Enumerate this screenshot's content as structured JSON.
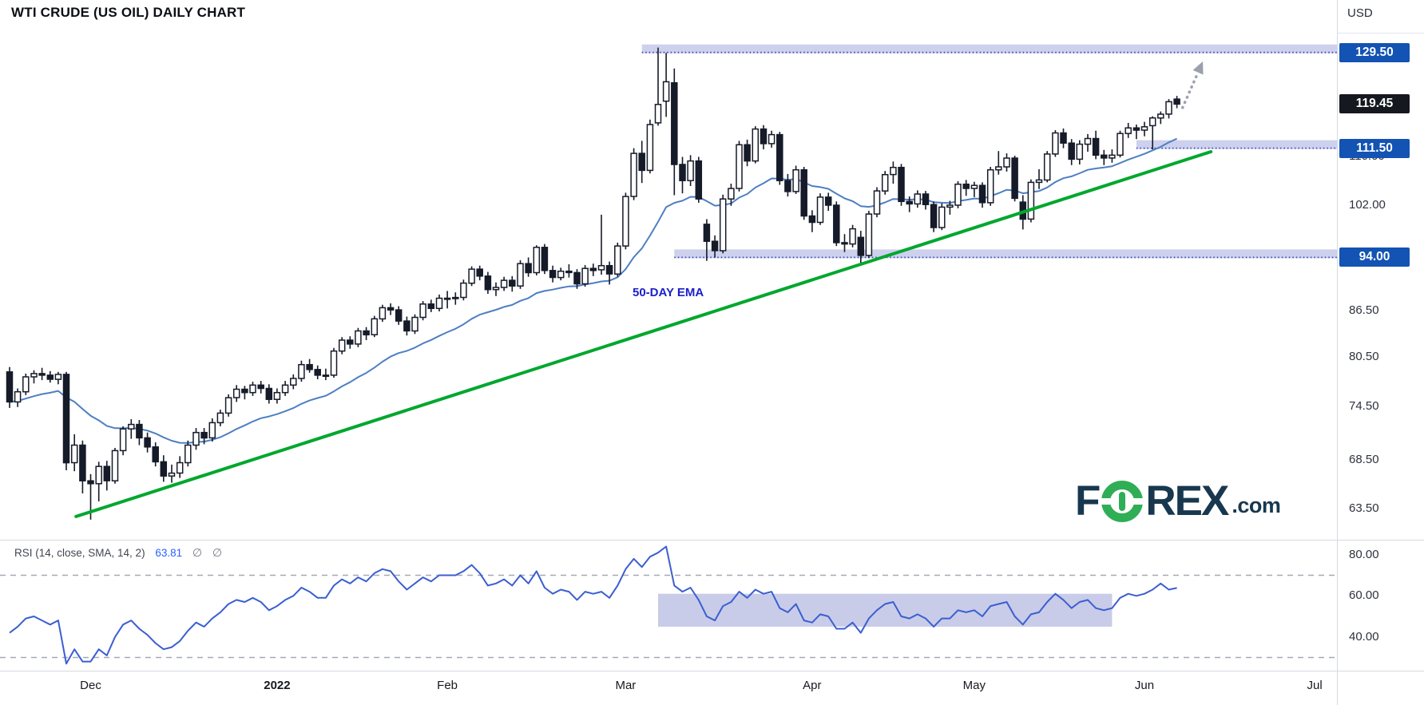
{
  "title": "WTI CRUDE (US OIL) DAILY CHART",
  "currency_label": "USD",
  "watermark": {
    "brand_left": "F",
    "brand_right": "REX",
    "tld": ".com"
  },
  "rsi_legend": {
    "name": "RSI (14, close, SMA, 14, 2)",
    "value": "63.81",
    "icon_1": "∅",
    "icon_2": "∅"
  },
  "annotations": {
    "ema_label": "50-DAY EMA",
    "levels": [
      {
        "label": "129.50",
        "price": 129.5,
        "start_index": 78
      },
      {
        "label": "94.00",
        "price": 94.0,
        "start_index": 82
      },
      {
        "label": "111.50",
        "price": 111.5,
        "start_index": 139
      }
    ],
    "trendline": {
      "from_index": 8.2,
      "from_price": 62.7,
      "to_index": 148.2,
      "to_price": 110.9
    },
    "arrow": {
      "from_index": 144.7,
      "from_price": 118.8,
      "to_index": 147.2,
      "to_price": 127.7
    }
  },
  "colors": {
    "candle_up_fill": "#ffffff",
    "candle_down_fill": "#161b29",
    "candle_stroke": "#161b29",
    "ema_line": "#4e7fc2",
    "trendline": "#00a72e",
    "band_fill": "rgba(144,153,215,0.45)",
    "band_line": "#3a46b4",
    "rsi_line": "#3c5ed1",
    "rsi_box_fill": "rgba(124,134,201,0.42)",
    "dashed_level": "#a6a9b3",
    "arrow": "#9ba0ab",
    "badge_blue": "#1253b4",
    "badge_black": "#15181e"
  },
  "chart_data": [
    {
      "type": "candlestick",
      "name": "WTI Crude (US Oil), daily",
      "y_scale": "log",
      "visible_price_range": [
        60.3,
        140.5
      ],
      "ohlc_format": [
        "open",
        "high",
        "low",
        "close"
      ],
      "last_price": 119.45,
      "y_ticks": [
        {
          "label": "110.00",
          "value": 110.0
        },
        {
          "label": "102.00",
          "value": 102.0
        },
        {
          "label": "86.50",
          "value": 86.5
        },
        {
          "label": "80.50",
          "value": 80.5
        },
        {
          "label": "74.50",
          "value": 74.5
        },
        {
          "label": "68.50",
          "value": 68.5
        },
        {
          "label": "63.50",
          "value": 63.5
        }
      ],
      "y_badges": [
        {
          "label": "129.50",
          "value": 129.5,
          "style": "blue"
        },
        {
          "label": "119.45",
          "value": 119.45,
          "style": "black"
        },
        {
          "label": "111.50",
          "value": 111.5,
          "style": "blue"
        },
        {
          "label": "94.00",
          "value": 94.0,
          "style": "blue"
        }
      ],
      "x_ticks": [
        {
          "label": "Dec",
          "index": 10
        },
        {
          "label": "2022",
          "index": 33,
          "year": true
        },
        {
          "label": "Feb",
          "index": 54
        },
        {
          "label": "Mar",
          "index": 76
        },
        {
          "label": "Apr",
          "index": 99
        },
        {
          "label": "May",
          "index": 119
        },
        {
          "label": "Jun",
          "index": 140
        },
        {
          "label": "Jul",
          "index": 161
        }
      ],
      "candles": [
        [
          78.6,
          79.2,
          74.3,
          75.0
        ],
        [
          75.0,
          76.6,
          74.4,
          76.2
        ],
        [
          76.2,
          78.4,
          75.8,
          78.0
        ],
        [
          78.0,
          78.8,
          77.2,
          78.4
        ],
        [
          78.4,
          79.1,
          77.6,
          78.2
        ],
        [
          78.2,
          78.7,
          77.3,
          77.7
        ],
        [
          77.7,
          78.6,
          77.1,
          78.3
        ],
        [
          78.3,
          78.6,
          67.4,
          68.2
        ],
        [
          68.2,
          71.3,
          67.3,
          70.1
        ],
        [
          70.1,
          70.6,
          65.0,
          66.3
        ],
        [
          66.3,
          67.0,
          62.4,
          66.0
        ],
        [
          66.0,
          68.3,
          64.2,
          67.8
        ],
        [
          67.8,
          68.4,
          65.3,
          66.3
        ],
        [
          66.3,
          69.8,
          66.0,
          69.5
        ],
        [
          69.5,
          72.2,
          69.0,
          71.9
        ],
        [
          71.9,
          73.0,
          70.8,
          72.4
        ],
        [
          72.4,
          72.9,
          70.1,
          70.9
        ],
        [
          70.9,
          71.5,
          69.3,
          69.9
        ],
        [
          69.9,
          70.4,
          67.8,
          68.3
        ],
        [
          68.3,
          69.0,
          66.2,
          66.8
        ],
        [
          66.8,
          68.0,
          66.1,
          67.1
        ],
        [
          67.1,
          68.9,
          66.6,
          68.2
        ],
        [
          68.2,
          70.6,
          67.8,
          70.1
        ],
        [
          70.1,
          72.0,
          69.6,
          71.5
        ],
        [
          71.5,
          72.0,
          70.2,
          70.9
        ],
        [
          70.9,
          73.1,
          70.5,
          72.6
        ],
        [
          72.6,
          74.1,
          72.2,
          73.7
        ],
        [
          73.7,
          75.9,
          73.3,
          75.5
        ],
        [
          75.5,
          77.0,
          75.0,
          76.5
        ],
        [
          76.5,
          76.9,
          75.3,
          76.1
        ],
        [
          76.1,
          77.4,
          75.7,
          77.0
        ],
        [
          77.0,
          77.5,
          76.0,
          76.6
        ],
        [
          76.6,
          77.1,
          74.8,
          75.3
        ],
        [
          75.3,
          76.6,
          74.8,
          76.1
        ],
        [
          76.1,
          77.5,
          75.7,
          77.0
        ],
        [
          77.0,
          78.3,
          76.5,
          77.8
        ],
        [
          77.8,
          80.0,
          77.4,
          79.5
        ],
        [
          79.5,
          80.2,
          78.5,
          78.9
        ],
        [
          78.9,
          79.4,
          77.7,
          78.2
        ],
        [
          78.2,
          79.0,
          77.6,
          78.2
        ],
        [
          78.2,
          81.6,
          77.9,
          81.2
        ],
        [
          81.2,
          83.0,
          80.8,
          82.6
        ],
        [
          82.6,
          83.1,
          81.5,
          82.1
        ],
        [
          82.1,
          84.2,
          81.7,
          83.8
        ],
        [
          83.8,
          84.3,
          82.6,
          83.3
        ],
        [
          83.3,
          85.8,
          83.0,
          85.4
        ],
        [
          85.4,
          87.3,
          85.0,
          86.9
        ],
        [
          86.9,
          87.5,
          85.9,
          86.6
        ],
        [
          86.6,
          87.1,
          84.6,
          85.1
        ],
        [
          85.1,
          85.7,
          83.2,
          83.8
        ],
        [
          83.8,
          86.0,
          83.4,
          85.6
        ],
        [
          85.6,
          87.8,
          85.2,
          87.4
        ],
        [
          87.4,
          88.0,
          86.3,
          86.8
        ],
        [
          86.8,
          88.7,
          86.4,
          88.2
        ],
        [
          88.2,
          89.2,
          86.8,
          88.2
        ],
        [
          88.2,
          89.0,
          87.3,
          88.3
        ],
        [
          88.3,
          90.8,
          87.9,
          90.3
        ],
        [
          90.3,
          92.7,
          89.9,
          92.3
        ],
        [
          92.3,
          92.8,
          90.7,
          91.3
        ],
        [
          91.3,
          91.9,
          88.8,
          89.4
        ],
        [
          89.4,
          90.4,
          88.5,
          89.7
        ],
        [
          89.7,
          91.2,
          89.2,
          90.7
        ],
        [
          90.7,
          91.3,
          89.1,
          89.9
        ],
        [
          89.9,
          93.6,
          89.5,
          93.1
        ],
        [
          93.1,
          94.0,
          91.2,
          91.8
        ],
        [
          91.8,
          95.8,
          91.4,
          95.5
        ],
        [
          95.5,
          96.0,
          91.6,
          92.1
        ],
        [
          92.1,
          92.8,
          90.4,
          91.1
        ],
        [
          91.1,
          92.5,
          90.7,
          92.0
        ],
        [
          92.0,
          93.0,
          91.1,
          91.8
        ],
        [
          91.8,
          92.3,
          89.5,
          90.2
        ],
        [
          90.2,
          92.9,
          89.8,
          92.4
        ],
        [
          92.4,
          93.1,
          91.3,
          92.1
        ],
        [
          92.2,
          100.5,
          91.5,
          92.8
        ],
        [
          92.8,
          93.4,
          90.1,
          91.6
        ],
        [
          91.6,
          96.2,
          91.2,
          95.7
        ],
        [
          95.7,
          104.0,
          95.2,
          103.4
        ],
        [
          103.4,
          111.5,
          102.8,
          110.6
        ],
        [
          110.6,
          112.8,
          105.6,
          107.7
        ],
        [
          107.7,
          116.6,
          107.2,
          115.7
        ],
        [
          116.0,
          130.5,
          115.5,
          119.4
        ],
        [
          120.0,
          129.4,
          117.1,
          123.7
        ],
        [
          123.5,
          126.3,
          103.6,
          108.7
        ],
        [
          108.7,
          110.0,
          103.9,
          106.0
        ],
        [
          106.0,
          110.3,
          105.1,
          109.3
        ],
        [
          109.3,
          110.0,
          102.4,
          103.0
        ],
        [
          99.0,
          99.8,
          93.5,
          96.4
        ],
        [
          96.4,
          97.3,
          94.0,
          95.0
        ],
        [
          95.0,
          103.7,
          94.6,
          103.0
        ],
        [
          103.0,
          105.5,
          101.9,
          104.7
        ],
        [
          104.7,
          112.8,
          104.2,
          112.1
        ],
        [
          112.1,
          113.0,
          108.4,
          109.3
        ],
        [
          109.3,
          115.4,
          108.9,
          114.9
        ],
        [
          114.9,
          115.6,
          111.3,
          112.3
        ],
        [
          112.3,
          114.6,
          111.6,
          113.9
        ],
        [
          113.9,
          114.4,
          105.3,
          106.0
        ],
        [
          106.0,
          107.1,
          103.4,
          104.2
        ],
        [
          104.2,
          108.5,
          103.8,
          107.8
        ],
        [
          107.8,
          108.3,
          99.7,
          100.3
        ],
        [
          100.3,
          101.2,
          97.8,
          99.3
        ],
        [
          99.3,
          103.9,
          98.9,
          103.3
        ],
        [
          103.3,
          104.0,
          101.1,
          102.0
        ],
        [
          102.0,
          102.6,
          95.7,
          96.2
        ],
        [
          96.2,
          97.5,
          94.8,
          96.0
        ],
        [
          96.0,
          98.9,
          95.5,
          98.3
        ],
        [
          97.0,
          98.0,
          92.9,
          94.3
        ],
        [
          94.3,
          101.1,
          93.9,
          100.6
        ],
        [
          100.6,
          104.9,
          100.1,
          104.3
        ],
        [
          104.3,
          107.6,
          103.7,
          107.0
        ],
        [
          107.0,
          109.2,
          105.5,
          108.2
        ],
        [
          108.2,
          108.8,
          101.9,
          102.6
        ],
        [
          102.6,
          103.4,
          100.9,
          102.2
        ],
        [
          102.2,
          104.4,
          101.6,
          103.8
        ],
        [
          103.8,
          104.3,
          101.3,
          102.1
        ],
        [
          102.1,
          102.6,
          97.8,
          98.5
        ],
        [
          98.5,
          102.3,
          98.1,
          101.7
        ],
        [
          101.7,
          102.7,
          100.5,
          102.0
        ],
        [
          102.0,
          105.9,
          101.5,
          105.4
        ],
        [
          105.4,
          106.1,
          103.5,
          104.7
        ],
        [
          104.7,
          105.8,
          103.3,
          105.2
        ],
        [
          105.2,
          105.7,
          101.6,
          102.4
        ],
        [
          102.4,
          108.3,
          101.9,
          107.8
        ],
        [
          107.8,
          111.0,
          107.0,
          108.3
        ],
        [
          108.3,
          110.6,
          107.5,
          109.8
        ],
        [
          109.8,
          110.2,
          102.6,
          103.1
        ],
        [
          102.5,
          103.6,
          98.2,
          99.8
        ],
        [
          99.8,
          106.2,
          99.3,
          105.7
        ],
        [
          105.7,
          107.9,
          104.6,
          106.1
        ],
        [
          106.1,
          111.0,
          105.7,
          110.5
        ],
        [
          110.5,
          114.7,
          110.0,
          114.2
        ],
        [
          114.2,
          115.0,
          111.5,
          112.4
        ],
        [
          112.4,
          113.1,
          108.6,
          109.6
        ],
        [
          109.6,
          112.9,
          108.7,
          112.2
        ],
        [
          112.2,
          114.0,
          110.9,
          113.2
        ],
        [
          113.2,
          114.6,
          109.6,
          110.3
        ],
        [
          110.3,
          111.2,
          108.6,
          109.8
        ],
        [
          109.8,
          111.3,
          109.0,
          110.3
        ],
        [
          110.3,
          114.6,
          109.9,
          114.1
        ],
        [
          114.1,
          116.0,
          113.3,
          115.1
        ],
        [
          115.1,
          115.7,
          113.1,
          114.7
        ],
        [
          114.7,
          116.2,
          113.6,
          115.3
        ],
        [
          115.5,
          117.2,
          111.3,
          116.9
        ],
        [
          116.9,
          118.1,
          115.8,
          117.6
        ],
        [
          117.6,
          120.4,
          116.8,
          119.9
        ],
        [
          120.4,
          121.0,
          118.7,
          119.45
        ]
      ]
    },
    {
      "type": "line",
      "name": "RSI (14)",
      "last_value": 63.81,
      "visible_range": [
        24,
        87
      ],
      "y_ticks": [
        {
          "label": "80.00",
          "value": 80
        },
        {
          "label": "60.00",
          "value": 60
        },
        {
          "label": "40.00",
          "value": 40
        }
      ],
      "dashed_levels": [
        70,
        30
      ],
      "shaded_box": {
        "from_index": 80,
        "to_index": 136,
        "rsi_low": 45,
        "rsi_high": 61
      },
      "values": [
        42,
        45,
        49,
        50,
        48,
        46,
        48,
        27,
        34,
        28,
        28,
        34,
        31,
        40,
        46,
        48,
        44,
        41,
        37,
        34,
        35,
        38,
        43,
        47,
        45,
        49,
        52,
        56,
        58,
        57,
        59,
        57,
        53,
        55,
        58,
        60,
        64,
        62,
        59,
        59,
        65,
        68,
        66,
        69,
        67,
        71,
        73,
        72,
        67,
        63,
        66,
        69,
        67,
        70,
        70,
        70,
        72,
        75,
        71,
        65,
        66,
        68,
        65,
        70,
        66,
        72,
        64,
        61,
        63,
        62,
        58,
        62,
        61,
        62,
        59,
        65,
        73,
        78,
        74,
        79,
        81,
        84,
        65,
        62,
        64,
        58,
        50,
        48,
        55,
        57,
        62,
        59,
        63,
        61,
        62,
        54,
        52,
        56,
        48,
        47,
        51,
        50,
        44,
        44,
        47,
        42,
        49,
        53,
        56,
        57,
        50,
        49,
        51,
        49,
        45,
        49,
        49,
        53,
        52,
        53,
        50,
        55,
        56,
        57,
        50,
        46,
        51,
        52,
        57,
        61,
        58,
        54,
        57,
        58,
        54,
        53,
        54,
        59,
        61,
        60,
        61,
        63,
        66,
        63,
        63.81
      ]
    }
  ]
}
